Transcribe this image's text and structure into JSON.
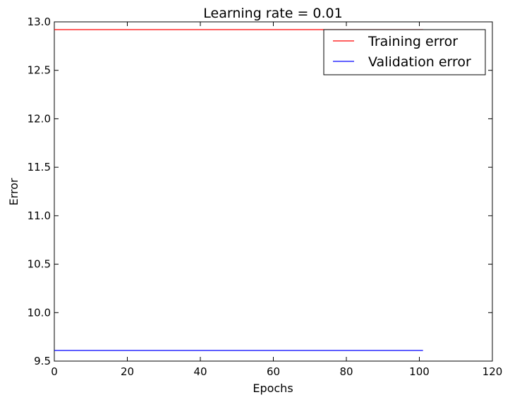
{
  "chart_data": {
    "type": "line",
    "title": "Learning rate = 0.01",
    "xlabel": "Epochs",
    "ylabel": "Error",
    "xlim": [
      0,
      120
    ],
    "ylim": [
      9.5,
      13.0
    ],
    "xticks": [
      0,
      20,
      40,
      60,
      80,
      100,
      120
    ],
    "yticks": [
      9.5,
      10.0,
      10.5,
      11.0,
      11.5,
      12.0,
      12.5,
      13.0
    ],
    "xtick_labels": [
      "0",
      "20",
      "40",
      "60",
      "80",
      "100",
      "120"
    ],
    "ytick_labels": [
      "9.5",
      "10.0",
      "10.5",
      "11.0",
      "11.5",
      "12.0",
      "12.5",
      "13.0"
    ],
    "grid": false,
    "legend_position": "top-right",
    "series": [
      {
        "name": "Training error",
        "color": "#ff0000",
        "x": [
          0,
          101
        ],
        "y": [
          12.92,
          12.92
        ]
      },
      {
        "name": "Validation error",
        "color": "#0000ff",
        "x": [
          0,
          101
        ],
        "y": [
          9.61,
          9.61
        ]
      }
    ]
  }
}
